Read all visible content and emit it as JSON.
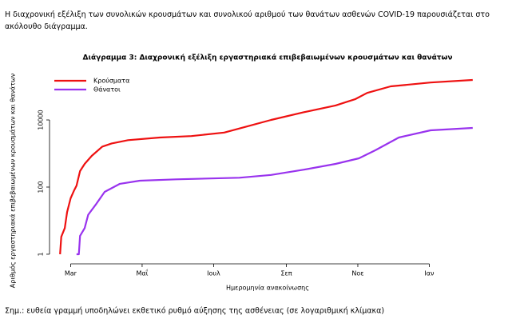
{
  "intro": "Η διαχρονική εξέλιξη των συνολικών κρουσμάτων και συνολικού αριθμού των θανάτων ασθενών COVID-19 παρουσιάζεται στο ακόλουθο διάγραμμα.",
  "note": "Σημ.: ευθεία γραμμή υποδηλώνει εκθετικό ρυθμό αύξησης της ασθένειας (σε λογαριθμική κλίμακα)",
  "chart_data": {
    "type": "line",
    "title": "Διάγραμμα 3: Διαχρονική εξέλιξη εργαστηριακά επιβεβαιωμένων κρουσμάτων και θανάτων",
    "xlabel": "Ημερομηνία ανακοίνωσης",
    "ylabel": "Αριθμός εργαστηριακά επιβεβαιωμένων κρουσμάτων και θανάτων",
    "log_y": true,
    "legend": "top-left",
    "xlim": [
      -18,
      352
    ],
    "ylim": [
      0.5,
      300000
    ],
    "xticks": [
      {
        "value": 0,
        "label": "Mar"
      },
      {
        "value": 61,
        "label": "Μαΐ"
      },
      {
        "value": 122,
        "label": "Ιουλ"
      },
      {
        "value": 184,
        "label": "Σεπ"
      },
      {
        "value": 245,
        "label": "Νοε"
      },
      {
        "value": 306,
        "label": "Ιαν"
      }
    ],
    "yticks": [
      1,
      100,
      10000
    ],
    "series": [
      {
        "name": "Κρούσματα",
        "color": "#ee1111",
        "x": [
          -9,
          -8,
          -5,
          -3,
          0,
          3,
          5,
          8,
          12,
          18,
          27,
          35,
          49,
          76,
          103,
          131,
          151,
          171,
          199,
          226,
          243,
          253,
          273,
          307,
          343
        ],
        "values": [
          1,
          3.3,
          6,
          18,
          46,
          80,
          110,
          300,
          490,
          850,
          1600,
          2000,
          2500,
          3000,
          3300,
          4200,
          6500,
          10000,
          17000,
          27000,
          42000,
          64000,
          100000,
          130000,
          155000
        ]
      },
      {
        "name": "Θάνατοι",
        "color": "#9933ee",
        "x": [
          5,
          7,
          8,
          12,
          15,
          22,
          29,
          42,
          59,
          90,
          144,
          171,
          199,
          226,
          246,
          260,
          280,
          307,
          343
        ],
        "values": [
          1,
          1,
          3.5,
          6,
          15,
          32,
          72,
          125,
          155,
          170,
          190,
          230,
          330,
          490,
          720,
          1250,
          3000,
          4900,
          5800
        ]
      }
    ]
  }
}
